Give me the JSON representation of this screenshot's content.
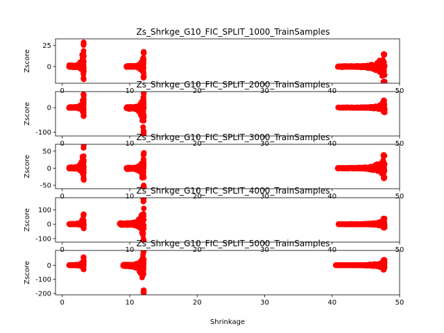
{
  "figure": {
    "xlabel": "Shrinkage"
  },
  "chart_data": [
    {
      "type": "scatter",
      "title": "Zs_Shrkge_G10_FIC_SPLIT_1000_TrainSamples",
      "xlabel": "",
      "ylabel": "Zscore",
      "xlim": [
        -1,
        50
      ],
      "ylim": [
        -20,
        33
      ],
      "xticks": [
        0,
        10,
        20,
        30,
        40,
        50
      ],
      "yticks": [
        0,
        25
      ],
      "marker_color": "#ff0000",
      "grid": false,
      "clusters": [
        {
          "x_range": [
            1.0,
            3.2
          ],
          "z_min": -16,
          "z_max": 30
        },
        {
          "x_range": [
            9.5,
            12.1
          ],
          "z_min": -14,
          "z_max": 18
        },
        {
          "x_range": [
            40.8,
            47.8
          ],
          "z_min": -20,
          "z_max": 16
        }
      ]
    },
    {
      "type": "scatter",
      "title": "Zs_Shrkge_G10_FIC_SPLIT_2000_TrainSamples",
      "xlabel": "",
      "ylabel": "Zscore",
      "xlim": [
        -1,
        50
      ],
      "ylim": [
        -115,
        65
      ],
      "xticks": [
        0,
        10,
        20,
        30,
        40,
        50
      ],
      "yticks": [
        -100,
        0
      ],
      "marker_color": "#ff0000",
      "grid": false,
      "clusters": [
        {
          "x_range": [
            1.0,
            3.2
          ],
          "z_min": -35,
          "z_max": 55
        },
        {
          "x_range": [
            9.5,
            12.1
          ],
          "z_min": -110,
          "z_max": 65
        },
        {
          "x_range": [
            40.8,
            47.8
          ],
          "z_min": -20,
          "z_max": 30
        }
      ]
    },
    {
      "type": "scatter",
      "title": "Zs_Shrkge_G10_FIC_SPLIT_3000_TrainSamples",
      "xlabel": "",
      "ylabel": "Zscore",
      "xlim": [
        -1,
        50
      ],
      "ylim": [
        -60,
        70
      ],
      "xticks": [
        0,
        10,
        20,
        30,
        40,
        50
      ],
      "yticks": [
        -50,
        0,
        50
      ],
      "marker_color": "#ff0000",
      "grid": false,
      "clusters": [
        {
          "x_range": [
            1.0,
            3.2
          ],
          "z_min": -35,
          "z_max": 70
        },
        {
          "x_range": [
            9.5,
            12.1
          ],
          "z_min": -58,
          "z_max": 45
        },
        {
          "x_range": [
            40.8,
            47.8
          ],
          "z_min": -30,
          "z_max": 40
        }
      ]
    },
    {
      "type": "scatter",
      "title": "Zs_Shrkge_G10_FIC_SPLIT_4000_TrainSamples",
      "xlabel": "",
      "ylabel": "Zscore",
      "xlim": [
        -1,
        50
      ],
      "ylim": [
        -125,
        185
      ],
      "xticks": [
        0,
        10,
        20,
        30,
        40,
        50
      ],
      "yticks": [
        -100,
        0,
        100
      ],
      "marker_color": "#ff0000",
      "grid": false,
      "clusters": [
        {
          "x_range": [
            1.0,
            3.2
          ],
          "z_min": -30,
          "z_max": 70
        },
        {
          "x_range": [
            8.5,
            12.1
          ],
          "z_min": -120,
          "z_max": 185
        },
        {
          "x_range": [
            40.8,
            47.8
          ],
          "z_min": -25,
          "z_max": 45
        }
      ]
    },
    {
      "type": "scatter",
      "title": "Zs_Shrkge_G10_FIC_SPLIT_5000_TrainSamples",
      "xlabel": "Shrinkage",
      "ylabel": "Zscore",
      "xlim": [
        -1,
        50
      ],
      "ylim": [
        -210,
        105
      ],
      "xticks": [
        0,
        10,
        20,
        30,
        40,
        50
      ],
      "yticks": [
        -200,
        -100,
        0
      ],
      "marker_color": "#ff0000",
      "grid": false,
      "clusters": [
        {
          "x_range": [
            1.0,
            3.2
          ],
          "z_min": -30,
          "z_max": 60
        },
        {
          "x_range": [
            9.0,
            12.1
          ],
          "z_min": -200,
          "z_max": 105
        },
        {
          "x_range": [
            40.5,
            47.8
          ],
          "z_min": -35,
          "z_max": 40
        }
      ]
    }
  ]
}
